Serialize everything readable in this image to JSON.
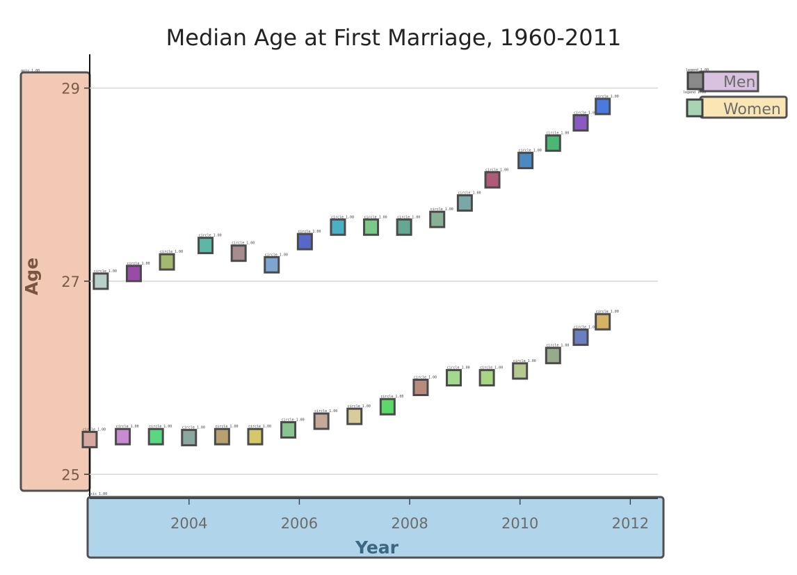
{
  "chart_data": {
    "type": "scatter",
    "title": "Median Age at First Marriage, 1960-2011",
    "xlabel": "Year",
    "ylabel": "Age",
    "x_ticks": [
      2004,
      2006,
      2008,
      2010,
      2012
    ],
    "y_ticks": [
      25,
      27,
      29
    ],
    "xlim": [
      2002.2,
      2012.5
    ],
    "ylim": [
      24.75,
      29.35
    ],
    "grid": "horizontal",
    "legend_position": "top-right",
    "series": [
      {
        "name": "Men",
        "legend_color": "#d9c2df",
        "marker_colors": [
          "#b8d0c8",
          "#9a4aa8",
          "#a4b870",
          "#5cb8a4",
          "#a68c8c",
          "#7ea4d0",
          "#5868c8",
          "#4ab0c4",
          "#7cc888",
          "#64a894",
          "#88b094",
          "#7aa8a4",
          "#b05a7a",
          "#4a8ac4",
          "#4ab874",
          "#8a5ac4",
          "#4a7ae0"
        ],
        "points": [
          {
            "x": 2002.4,
            "y": 27.0
          },
          {
            "x": 2003.0,
            "y": 27.08
          },
          {
            "x": 2003.6,
            "y": 27.2
          },
          {
            "x": 2004.3,
            "y": 27.37
          },
          {
            "x": 2004.9,
            "y": 27.29
          },
          {
            "x": 2005.5,
            "y": 27.17
          },
          {
            "x": 2006.1,
            "y": 27.41
          },
          {
            "x": 2006.7,
            "y": 27.56
          },
          {
            "x": 2007.3,
            "y": 27.56
          },
          {
            "x": 2007.9,
            "y": 27.56
          },
          {
            "x": 2008.5,
            "y": 27.64
          },
          {
            "x": 2009.0,
            "y": 27.81
          },
          {
            "x": 2009.5,
            "y": 28.05
          },
          {
            "x": 2010.1,
            "y": 28.25
          },
          {
            "x": 2010.6,
            "y": 28.43
          },
          {
            "x": 2011.1,
            "y": 28.64
          },
          {
            "x": 2011.5,
            "y": 28.81
          }
        ]
      },
      {
        "name": "Women",
        "legend_color": "#f9e6b4",
        "marker_colors": [
          "#d8a8a0",
          "#c88ad0",
          "#58d880",
          "#8aa8a0",
          "#b8a070",
          "#d4c86a",
          "#88c490",
          "#c4a898",
          "#d8cc9a",
          "#5cd868",
          "#b88c7c",
          "#a4d88c",
          "#a8d484",
          "#b4c890",
          "#98aa8c",
          "#6a7ec0",
          "#d4b464"
        ],
        "points": [
          {
            "x": 2002.2,
            "y": 25.36
          },
          {
            "x": 2002.8,
            "y": 25.39
          },
          {
            "x": 2003.4,
            "y": 25.39
          },
          {
            "x": 2004.0,
            "y": 25.38
          },
          {
            "x": 2004.6,
            "y": 25.39
          },
          {
            "x": 2005.2,
            "y": 25.39
          },
          {
            "x": 2005.8,
            "y": 25.46
          },
          {
            "x": 2006.4,
            "y": 25.55
          },
          {
            "x": 2007.0,
            "y": 25.6
          },
          {
            "x": 2007.6,
            "y": 25.7
          },
          {
            "x": 2008.2,
            "y": 25.9
          },
          {
            "x": 2008.8,
            "y": 26.0
          },
          {
            "x": 2009.4,
            "y": 26.0
          },
          {
            "x": 2010.0,
            "y": 26.07
          },
          {
            "x": 2010.6,
            "y": 26.23
          },
          {
            "x": 2011.1,
            "y": 26.42
          },
          {
            "x": 2011.5,
            "y": 26.58
          }
        ]
      }
    ],
    "annotation_text": {
      "circle": "circle 1.00",
      "legend": "legend 1.00",
      "axis": "axis 1.00"
    }
  },
  "colors": {
    "y_axis_band": "#f2c9b4",
    "x_axis_band": "#b0d4ea",
    "grid": "#d6d6d6",
    "box_stroke": "#505050"
  }
}
